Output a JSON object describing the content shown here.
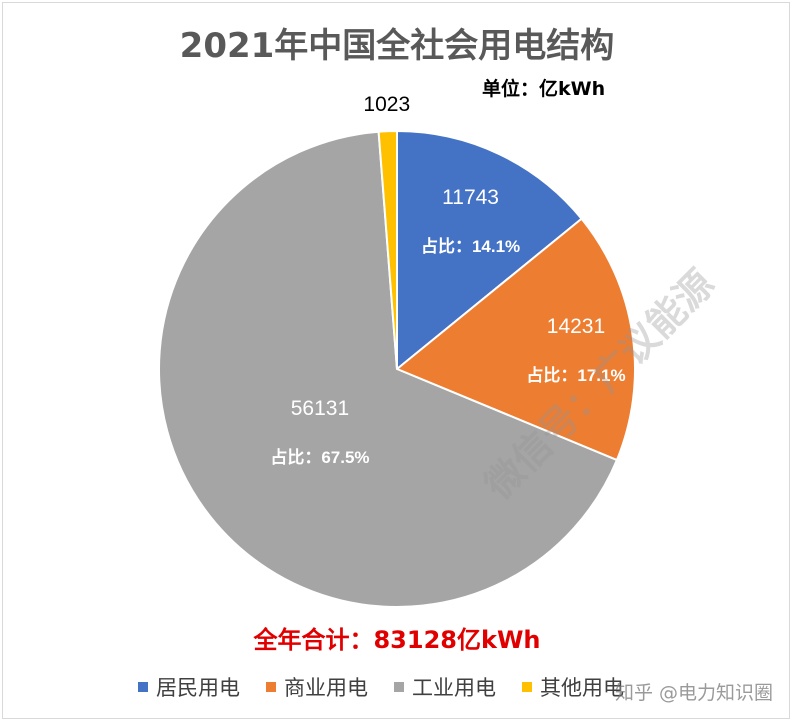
{
  "title": "2021年中国全社会用电结构",
  "unit_label": "单位：亿kWh",
  "total_label": "全年合计：83128亿kWh",
  "colors": {
    "居民用电": "#4472C4",
    "商业用电": "#ED7D31",
    "工业用电": "#A5A5A5",
    "其他用电": "#FFC000"
  },
  "chart_data": {
    "type": "pie",
    "title": "2021年中国全社会用电结构",
    "unit": "亿kWh",
    "total": 83128,
    "slices": [
      {
        "name": "居民用电",
        "value": 11743,
        "share_label": "占比：14.1%",
        "color": "#4472C4"
      },
      {
        "name": "商业用电",
        "value": 14231,
        "share_label": "占比：17.1%",
        "color": "#ED7D31"
      },
      {
        "name": "工业用电",
        "value": 56131,
        "share_label": "占比：67.5%",
        "color": "#A5A5A5"
      },
      {
        "name": "其他用电",
        "value": 1023,
        "share_label": "",
        "color": "#FFC000"
      }
    ],
    "legend_position": "bottom"
  },
  "legend": [
    {
      "label": "居民用电",
      "color": "#4472C4"
    },
    {
      "label": "商业用电",
      "color": "#ED7D31"
    },
    {
      "label": "工业用电",
      "color": "#A5A5A5"
    },
    {
      "label": "其他用电",
      "color": "#FFC000"
    }
  ],
  "watermark": "微信号：广议能源",
  "watermark_small": "知乎 @电力知识圈"
}
